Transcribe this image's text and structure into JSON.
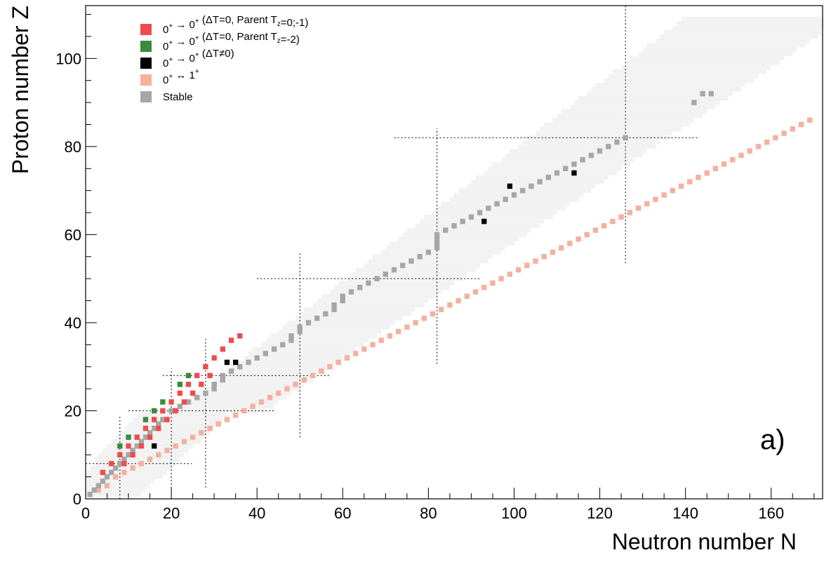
{
  "chart_data": {
    "type": "scatter",
    "xlabel": "Neutron number N",
    "ylabel": "Proton number Z",
    "xlim": [
      0,
      172
    ],
    "ylim": [
      0,
      112
    ],
    "x_ticks": [
      0,
      20,
      40,
      60,
      80,
      100,
      120,
      140,
      160
    ],
    "y_ticks": [
      0,
      20,
      40,
      60,
      80,
      100
    ],
    "grid": false,
    "legend_position": "top-left",
    "panel_label": "a)",
    "magic_numbers": [
      8,
      20,
      28,
      50,
      82,
      126
    ],
    "legend": [
      {
        "key": "t0",
        "color": "#f04b4b",
        "parts": [
          [
            "0",
            "n"
          ],
          [
            "+",
            "sup"
          ],
          [
            " → 0",
            "n"
          ],
          [
            "+",
            "sup"
          ],
          [
            " (ΔT=0, Parent T",
            "n"
          ],
          [
            "z",
            "sub"
          ],
          [
            "=0;-1)",
            "n"
          ]
        ]
      },
      {
        "key": "t2",
        "color": "#3a8a3a",
        "parts": [
          [
            "0",
            "n"
          ],
          [
            "+",
            "sup"
          ],
          [
            " → 0",
            "n"
          ],
          [
            "+",
            "sup"
          ],
          [
            " (ΔT=0, Parent T",
            "n"
          ],
          [
            "z",
            "sub"
          ],
          [
            "=-2)",
            "n"
          ]
        ]
      },
      {
        "key": "iv",
        "color": "#000000",
        "parts": [
          [
            "0",
            "n"
          ],
          [
            "+",
            "sup"
          ],
          [
            " → 0",
            "n"
          ],
          [
            "+",
            "sup"
          ],
          [
            " (ΔT≠0)",
            "n"
          ]
        ]
      },
      {
        "key": "gt",
        "color": "#f5b09e",
        "parts": [
          [
            "0",
            "n"
          ],
          [
            "+",
            "sup"
          ],
          [
            " ↔ 1",
            "n"
          ],
          [
            "+",
            "sup"
          ]
        ]
      },
      {
        "key": "st",
        "color": "#a6a6a6",
        "parts": [
          [
            "Stable",
            "n"
          ]
        ]
      }
    ],
    "colors": {
      "known_nuclei": "#f2f2f2",
      "t0": "#f04b4b",
      "t2": "#3a8a3a",
      "iv": "#000000",
      "gt": "#f5b09e",
      "st": "#a6a6a6"
    },
    "series": [
      {
        "key": "t0",
        "points": [
          [
            4,
            6
          ],
          [
            6,
            8
          ],
          [
            8,
            10
          ],
          [
            10,
            12
          ],
          [
            12,
            14
          ],
          [
            14,
            16
          ],
          [
            16,
            18
          ],
          [
            18,
            20
          ],
          [
            20,
            22
          ],
          [
            22,
            24
          ],
          [
            24,
            26
          ],
          [
            26,
            28
          ],
          [
            28,
            30
          ],
          [
            30,
            32
          ],
          [
            32,
            34
          ],
          [
            36,
            37
          ],
          [
            34,
            36
          ],
          [
            17,
            16
          ],
          [
            19,
            18
          ],
          [
            21,
            20
          ],
          [
            23,
            22
          ],
          [
            25,
            24
          ],
          [
            27,
            26
          ],
          [
            29,
            28
          ],
          [
            13,
            12
          ],
          [
            15,
            14
          ],
          [
            9,
            8
          ],
          [
            11,
            10
          ]
        ]
      },
      {
        "key": "t2",
        "points": [
          [
            8,
            12
          ],
          [
            10,
            14
          ],
          [
            14,
            18
          ],
          [
            16,
            20
          ],
          [
            18,
            22
          ],
          [
            22,
            26
          ],
          [
            24,
            28
          ]
        ]
      },
      {
        "key": "iv",
        "points": [
          [
            16,
            12
          ],
          [
            33,
            31
          ],
          [
            35,
            31
          ],
          [
            93,
            63
          ],
          [
            99,
            71
          ],
          [
            114,
            74
          ]
        ]
      },
      {
        "key": "st",
        "points": [
          [
            1,
            1
          ],
          [
            2,
            2
          ],
          [
            3,
            3
          ],
          [
            4,
            4
          ],
          [
            5,
            5
          ],
          [
            6,
            6
          ],
          [
            7,
            7
          ],
          [
            8,
            8
          ],
          [
            9,
            9
          ],
          [
            10,
            10
          ],
          [
            11,
            11
          ],
          [
            12,
            12
          ],
          [
            13,
            13
          ],
          [
            14,
            14
          ],
          [
            15,
            15
          ],
          [
            16,
            16
          ],
          [
            17,
            17
          ],
          [
            18,
            18
          ],
          [
            20,
            20
          ],
          [
            22,
            21
          ],
          [
            24,
            22
          ],
          [
            26,
            23
          ],
          [
            28,
            24
          ],
          [
            30,
            25
          ],
          [
            30,
            26
          ],
          [
            32,
            27
          ],
          [
            32,
            28
          ],
          [
            34,
            29
          ],
          [
            36,
            30
          ],
          [
            38,
            31
          ],
          [
            40,
            32
          ],
          [
            42,
            33
          ],
          [
            44,
            34
          ],
          [
            46,
            35
          ],
          [
            48,
            36
          ],
          [
            48,
            37
          ],
          [
            50,
            38
          ],
          [
            50,
            39
          ],
          [
            52,
            40
          ],
          [
            54,
            41
          ],
          [
            56,
            42
          ],
          [
            58,
            43
          ],
          [
            58,
            44
          ],
          [
            60,
            45
          ],
          [
            60,
            46
          ],
          [
            62,
            47
          ],
          [
            64,
            48
          ],
          [
            66,
            49
          ],
          [
            68,
            50
          ],
          [
            70,
            51
          ],
          [
            72,
            52
          ],
          [
            74,
            53
          ],
          [
            76,
            54
          ],
          [
            78,
            55
          ],
          [
            80,
            56
          ],
          [
            82,
            57
          ],
          [
            82,
            58
          ],
          [
            82,
            59
          ],
          [
            82,
            60
          ],
          [
            84,
            61
          ],
          [
            86,
            62
          ],
          [
            88,
            63
          ],
          [
            90,
            64
          ],
          [
            92,
            65
          ],
          [
            94,
            66
          ],
          [
            96,
            67
          ],
          [
            98,
            68
          ],
          [
            100,
            69
          ],
          [
            102,
            70
          ],
          [
            104,
            71
          ],
          [
            106,
            72
          ],
          [
            108,
            73
          ],
          [
            110,
            74
          ],
          [
            112,
            75
          ],
          [
            114,
            76
          ],
          [
            116,
            77
          ],
          [
            118,
            78
          ],
          [
            120,
            79
          ],
          [
            122,
            80
          ],
          [
            124,
            81
          ],
          [
            126,
            82
          ],
          [
            142,
            90
          ],
          [
            144,
            92
          ],
          [
            146,
            92
          ]
        ]
      },
      {
        "key": "gt",
        "points": [
          [
            3,
            2
          ],
          [
            5,
            3
          ],
          [
            7,
            5
          ],
          [
            9,
            6
          ],
          [
            11,
            7
          ],
          [
            13,
            8
          ],
          [
            15,
            9
          ],
          [
            17,
            10
          ],
          [
            19,
            11
          ],
          [
            21,
            12
          ],
          [
            23,
            13
          ],
          [
            25,
            14
          ],
          [
            27,
            15
          ],
          [
            29,
            16
          ],
          [
            31,
            17
          ],
          [
            33,
            18
          ],
          [
            35,
            19
          ],
          [
            37,
            20
          ],
          [
            39,
            21
          ],
          [
            41,
            22
          ],
          [
            43,
            23
          ],
          [
            45,
            24
          ],
          [
            47,
            25
          ],
          [
            49,
            26
          ],
          [
            51,
            27
          ],
          [
            53,
            28
          ],
          [
            55,
            29
          ],
          [
            57,
            30
          ],
          [
            59,
            31
          ],
          [
            61,
            32
          ],
          [
            63,
            33
          ],
          [
            65,
            34
          ],
          [
            67,
            35
          ],
          [
            69,
            36
          ],
          [
            71,
            37
          ],
          [
            73,
            38
          ],
          [
            75,
            39
          ],
          [
            77,
            40
          ],
          [
            79,
            41
          ],
          [
            81,
            42
          ],
          [
            83,
            43
          ],
          [
            85,
            44
          ],
          [
            87,
            45
          ],
          [
            89,
            46
          ],
          [
            91,
            47
          ],
          [
            93,
            48
          ],
          [
            95,
            49
          ],
          [
            97,
            50
          ],
          [
            99,
            51
          ],
          [
            101,
            52
          ],
          [
            103,
            53
          ],
          [
            105,
            54
          ],
          [
            107,
            55
          ],
          [
            109,
            56
          ],
          [
            111,
            57
          ],
          [
            113,
            58
          ],
          [
            115,
            59
          ],
          [
            117,
            60
          ],
          [
            119,
            61
          ],
          [
            121,
            62
          ],
          [
            123,
            63
          ],
          [
            125,
            64
          ],
          [
            127,
            65
          ],
          [
            129,
            66
          ],
          [
            131,
            67
          ],
          [
            133,
            68
          ],
          [
            135,
            69
          ],
          [
            137,
            70
          ],
          [
            139,
            71
          ],
          [
            141,
            72
          ],
          [
            143,
            73
          ],
          [
            145,
            74
          ],
          [
            147,
            75
          ],
          [
            149,
            76
          ],
          [
            151,
            77
          ],
          [
            153,
            78
          ],
          [
            155,
            79
          ],
          [
            157,
            80
          ],
          [
            159,
            81
          ],
          [
            161,
            82
          ],
          [
            163,
            83
          ],
          [
            165,
            84
          ],
          [
            167,
            85
          ],
          [
            169,
            86
          ]
        ]
      }
    ],
    "known_region": {
      "n_min_offset": -6,
      "n_max_offset": 12,
      "z_max": 109
    }
  }
}
